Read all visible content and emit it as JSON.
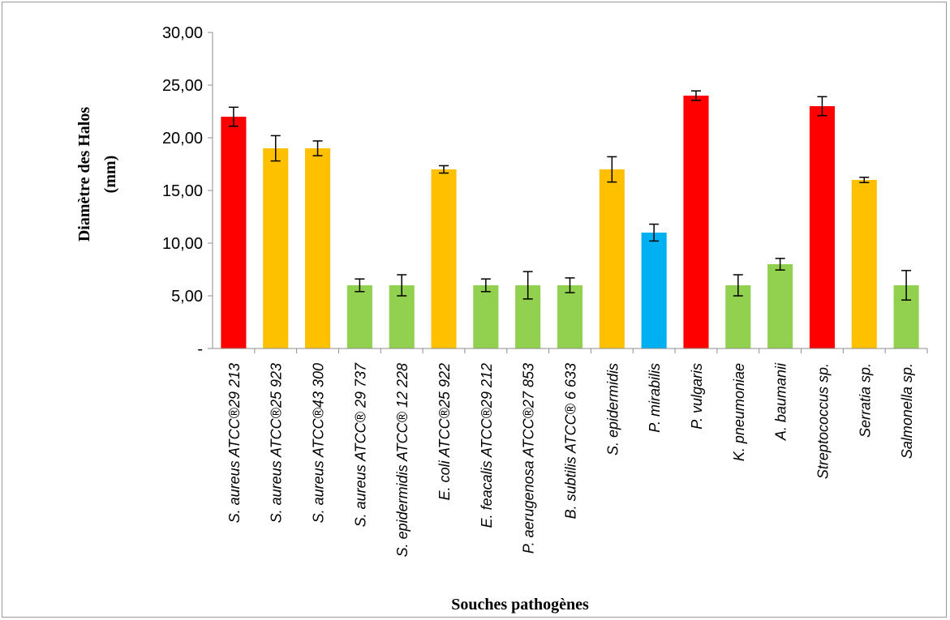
{
  "chart_data": {
    "type": "bar",
    "title": "",
    "ylabel_lines": [
      "Diamètre des Halos",
      "(mm)"
    ],
    "xlabel": "Souches pathogènes",
    "ylim": [
      0,
      30
    ],
    "yticks": [
      0,
      5,
      10,
      15,
      20,
      25,
      30
    ],
    "ytick_labels": [
      "-",
      "5,00",
      "10,00",
      "15,00",
      "20,00",
      "25,00",
      "30,00"
    ],
    "grid": false,
    "colors": {
      "red": "#ff0000",
      "orange": "#ffc000",
      "green": "#92d050",
      "blue": "#00b0f0"
    },
    "categories": [
      {
        "label": "S. aureus ATCC®29 213",
        "value": 22,
        "error": 0.9,
        "color": "red"
      },
      {
        "label": "S. aureus ATCC®25 923",
        "value": 19,
        "error": 1.2,
        "color": "orange"
      },
      {
        "label": "S. aureus ATCC®43 300",
        "value": 19,
        "error": 0.7,
        "color": "orange"
      },
      {
        "label": "S. aureus ATCC® 29 737",
        "value": 6,
        "error": 0.6,
        "color": "green"
      },
      {
        "label": "S. epidermidis ATCC® 12 228",
        "value": 6,
        "error": 1.0,
        "color": "green"
      },
      {
        "label": "E. coli  ATCC®25 922",
        "value": 17,
        "error": 0.35,
        "color": "orange"
      },
      {
        "label": "E.  feacalis ATCC®29 212",
        "value": 6,
        "error": 0.6,
        "color": "green"
      },
      {
        "label": "P. aerugenosa ATCC®27 853",
        "value": 6,
        "error": 1.3,
        "color": "green"
      },
      {
        "label": "B. subtilis ATCC® 6 633",
        "value": 6,
        "error": 0.7,
        "color": "green"
      },
      {
        "label": "S. epidermidis",
        "value": 17,
        "error": 1.2,
        "color": "orange"
      },
      {
        "label": "P. mirabilis",
        "value": 11,
        "error": 0.8,
        "color": "blue"
      },
      {
        "label": "P. vulgaris",
        "value": 24,
        "error": 0.45,
        "color": "red"
      },
      {
        "label": "K. pneumoniae",
        "value": 6,
        "error": 1.0,
        "color": "green"
      },
      {
        "label": "A. baumanii",
        "value": 8,
        "error": 0.55,
        "color": "green"
      },
      {
        "label": "Streptococcus sp.",
        "value": 23,
        "error": 0.9,
        "color": "red"
      },
      {
        "label": "Serratia sp.",
        "value": 16,
        "error": 0.25,
        "color": "orange"
      },
      {
        "label": "Salmonella sp.",
        "value": 6,
        "error": 1.4,
        "color": "green"
      }
    ]
  }
}
